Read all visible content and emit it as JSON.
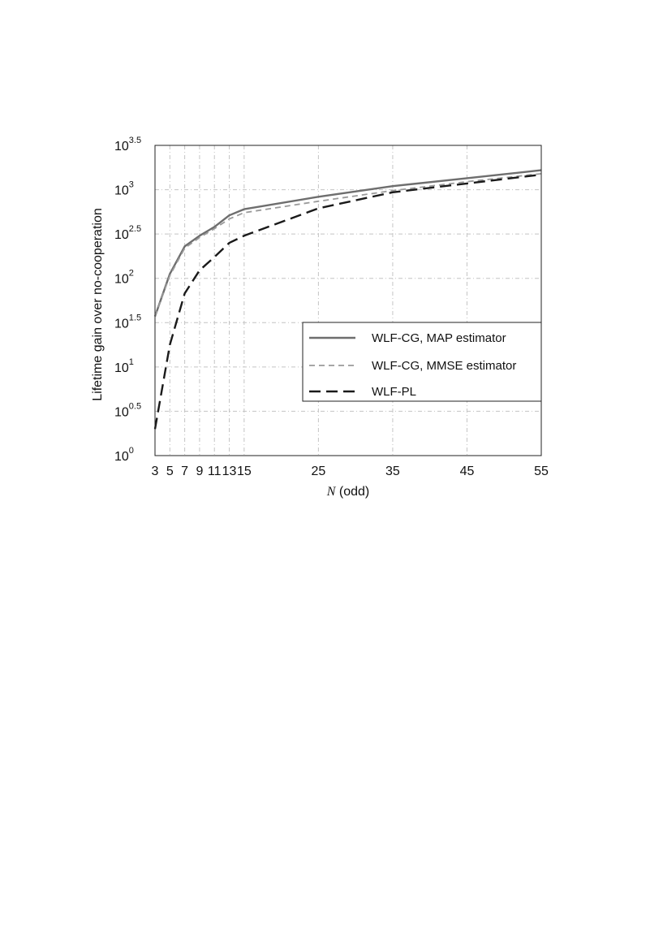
{
  "chart_data": {
    "type": "line",
    "title": "",
    "xlabel": "N",
    "xlabel_suffix": " (odd)",
    "ylabel": "Lifetime gain over no-cooperation",
    "xlim": [
      3,
      55
    ],
    "ylim_log10": [
      0,
      3.5
    ],
    "yscale": "log",
    "x_ticks": [
      3,
      5,
      7,
      9,
      11,
      13,
      15,
      25,
      35,
      45,
      55
    ],
    "x_tick_labels": [
      "3",
      "5",
      "7",
      "9",
      "11",
      "13",
      "15",
      "25",
      "35",
      "45",
      "55"
    ],
    "y_ticks": [
      {
        "base": "10",
        "exp": "0",
        "value": 0
      },
      {
        "base": "10",
        "exp": "0.5",
        "value": 0.5
      },
      {
        "base": "10",
        "exp": "1",
        "value": 1
      },
      {
        "base": "10",
        "exp": "1.5",
        "value": 1.5
      },
      {
        "base": "10",
        "exp": "2",
        "value": 2
      },
      {
        "base": "10",
        "exp": "2.5",
        "value": 2.5
      },
      {
        "base": "10",
        "exp": "3",
        "value": 3
      },
      {
        "base": "10",
        "exp": "3.5",
        "value": 3.5
      }
    ],
    "grid": true,
    "legend_position": "right-center",
    "x": [
      3,
      5,
      7,
      9,
      11,
      13,
      15,
      25,
      35,
      45,
      55
    ],
    "series": [
      {
        "name": "WLF-CG, MAP estimator",
        "style": "solid",
        "color": "#6e6e6e",
        "log10_values": [
          1.57,
          2.05,
          2.36,
          2.48,
          2.58,
          2.71,
          2.78,
          2.92,
          3.04,
          3.13,
          3.22
        ]
      },
      {
        "name": "WLF-CG, MMSE estimator",
        "style": "dashed",
        "color": "#9a9a9a",
        "log10_values": [
          1.57,
          2.03,
          2.34,
          2.46,
          2.56,
          2.67,
          2.74,
          2.87,
          2.99,
          3.09,
          3.18
        ]
      },
      {
        "name": "WLF-PL",
        "style": "longdash",
        "color": "#1a1a1a",
        "log10_values": [
          0.3,
          1.25,
          1.83,
          2.09,
          2.24,
          2.4,
          2.48,
          2.79,
          2.97,
          3.07,
          3.17
        ]
      }
    ]
  }
}
